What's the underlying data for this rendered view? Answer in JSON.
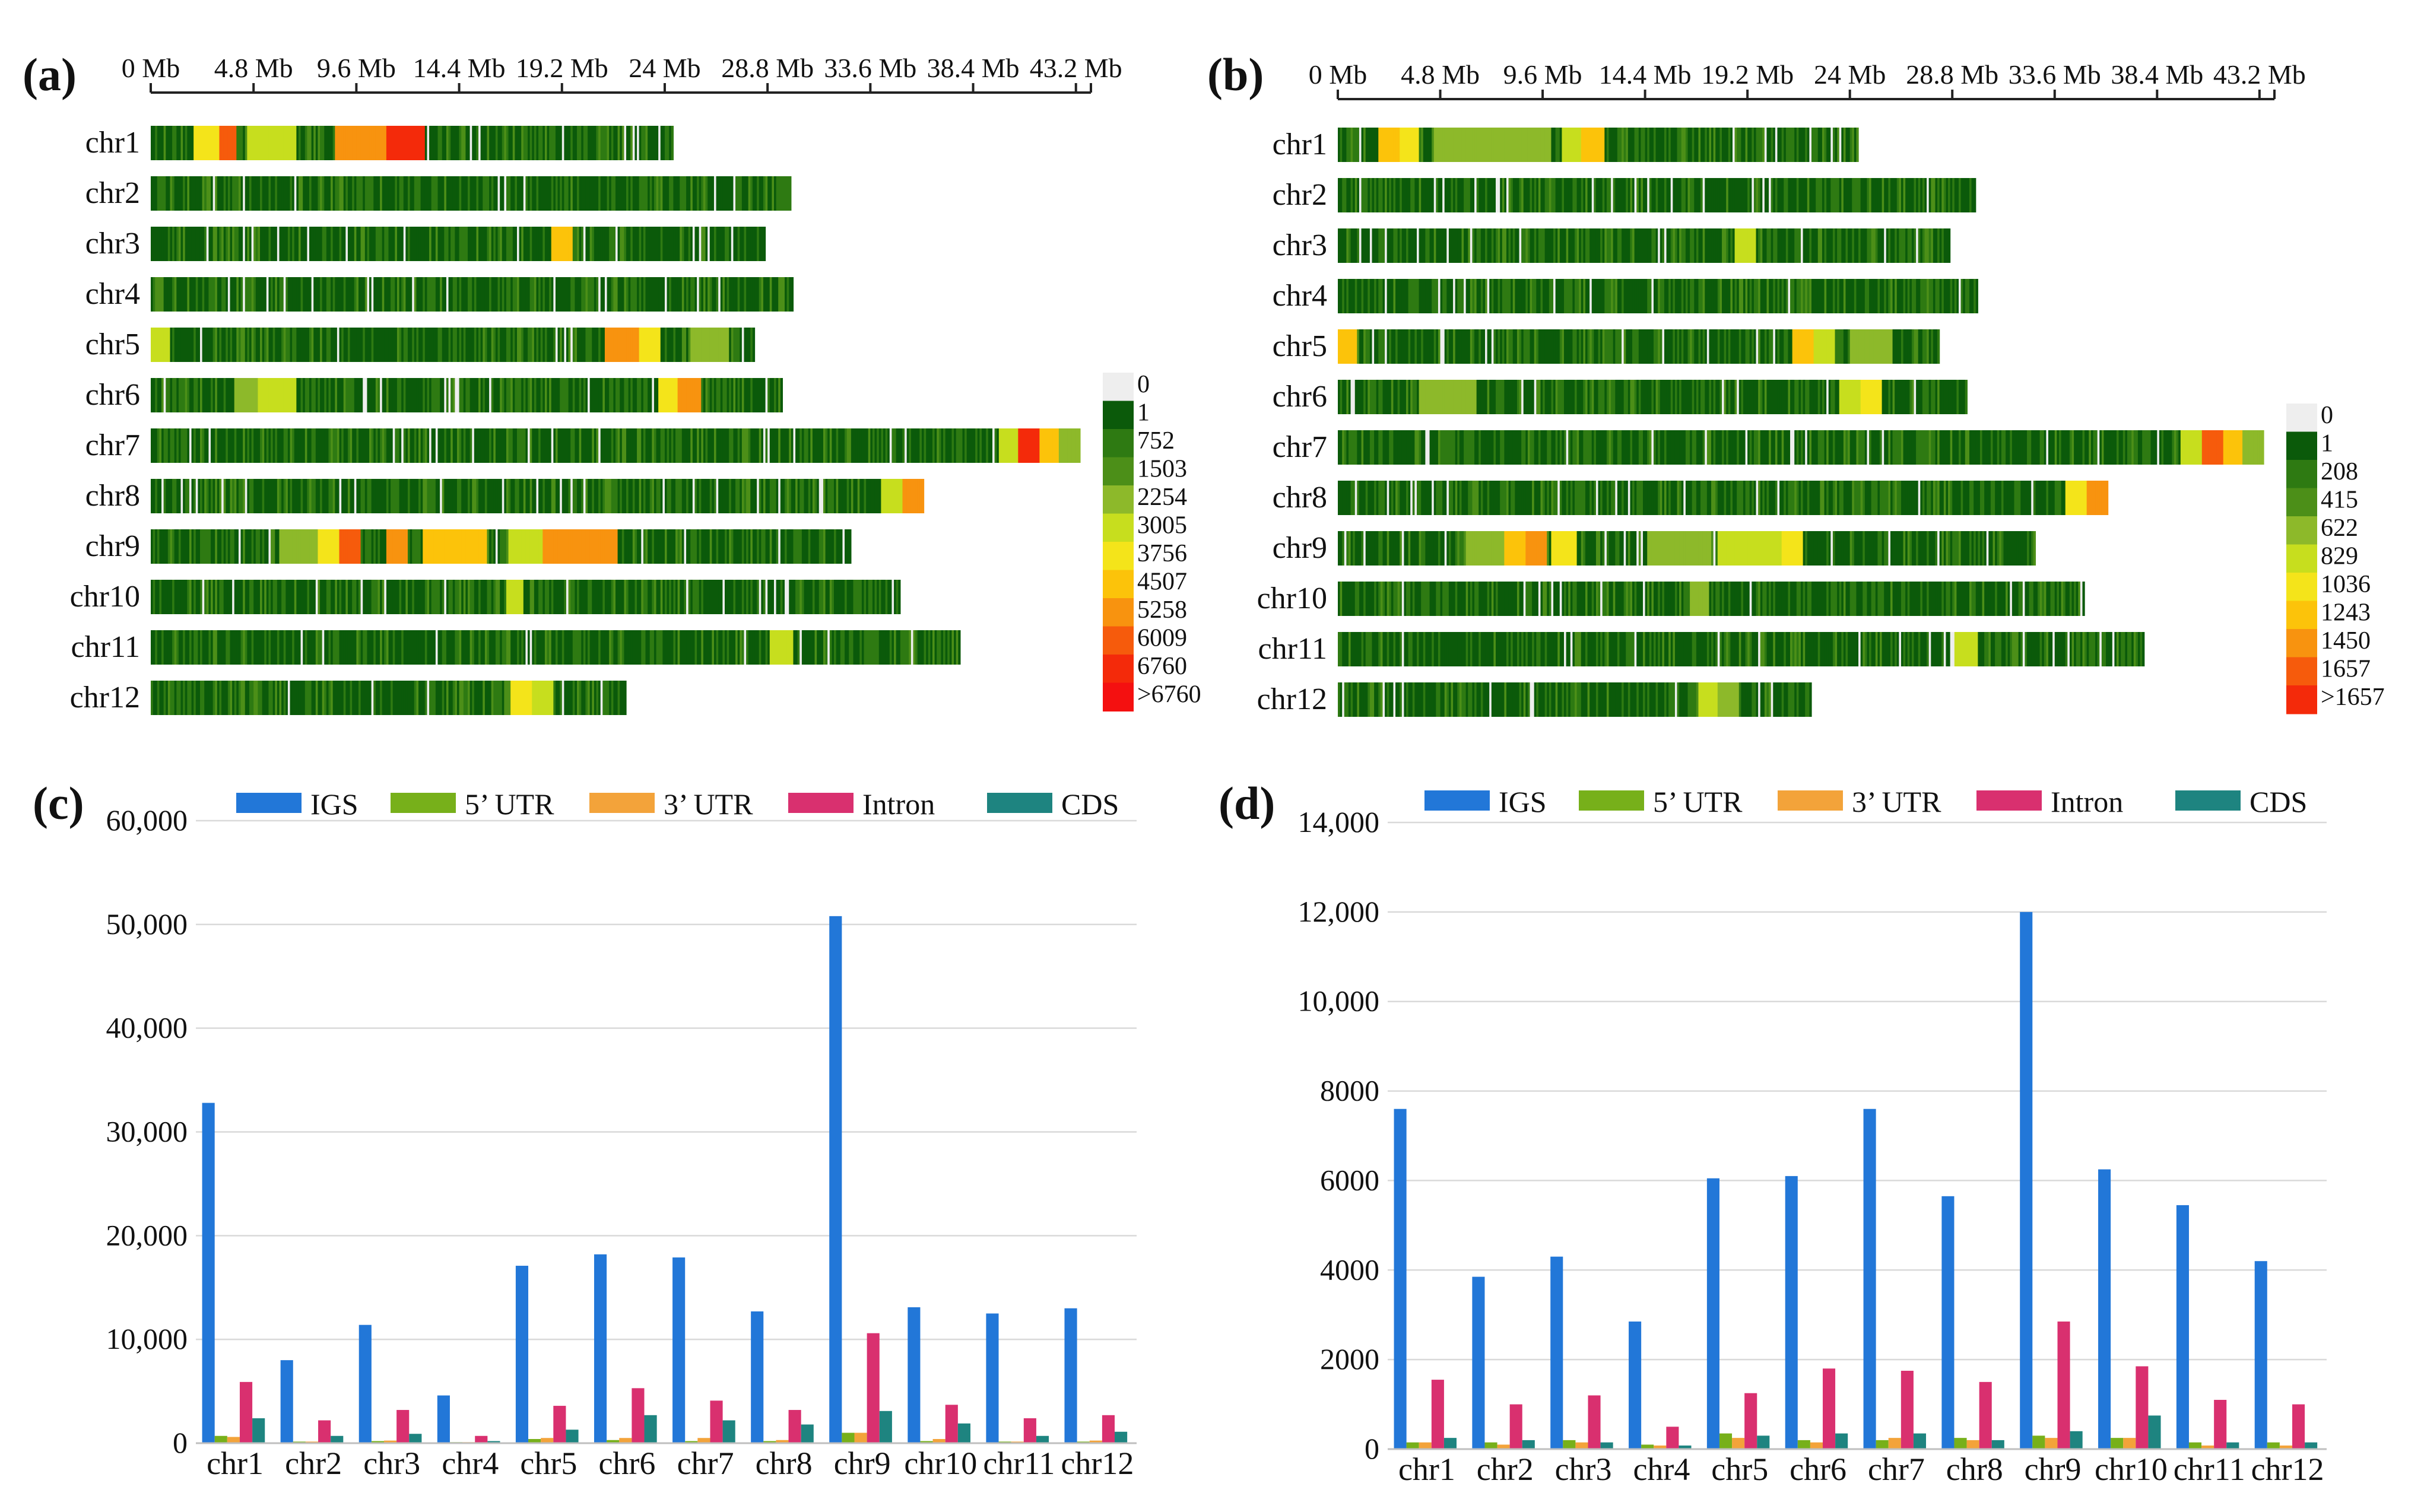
{
  "panels": [
    {
      "id": "a",
      "label": "(a)",
      "type": "heatmap",
      "axis_ticks": [
        "0 Mb",
        "4.8 Mb",
        "9.6 Mb",
        "14.4 Mb",
        "19.2 Mb",
        "24 Mb",
        "28.8 Mb",
        "33.6 Mb",
        "38.4 Mb",
        "43.2 Mb"
      ],
      "axis_tick_values_mb": [
        0,
        4.8,
        9.6,
        14.4,
        19.2,
        24,
        28.8,
        33.6,
        38.4,
        43.2
      ],
      "chromosomes": [
        "chr1",
        "chr2",
        "chr3",
        "chr4",
        "chr5",
        "chr6",
        "chr7",
        "chr8",
        "chr9",
        "chr10",
        "chr11",
        "chr12"
      ],
      "chromosome_lengths_mb": [
        24.4,
        29.9,
        28.7,
        30.0,
        28.2,
        29.5,
        43.4,
        36.1,
        32.7,
        35.0,
        37.8,
        22.2
      ],
      "legend_labels": [
        "0",
        "1",
        "752",
        "1503",
        "2254",
        "3005",
        "3756",
        "4507",
        "5258",
        "6009",
        "6760",
        ">6760"
      ],
      "hotspots": [
        {
          "chr": "chr1",
          "ranges_mb": [
            [
              2.0,
              3.2,
              6
            ],
            [
              3.2,
              4.0,
              9
            ],
            [
              4.5,
              6.8,
              5
            ],
            [
              8.6,
              11.0,
              8
            ],
            [
              11.0,
              12.8,
              10
            ]
          ]
        },
        {
          "chr": "chr3",
          "ranges_mb": [
            [
              18.7,
              19.7,
              7
            ]
          ]
        },
        {
          "chr": "chr5",
          "ranges_mb": [
            [
              0,
              0.9,
              5
            ],
            [
              21.2,
              22.8,
              8
            ],
            [
              22.8,
              23.8,
              6
            ],
            [
              25.2,
              27.0,
              4
            ]
          ]
        },
        {
          "chr": "chr6",
          "ranges_mb": [
            [
              3.9,
              5.0,
              4
            ],
            [
              5.0,
              6.8,
              5
            ],
            [
              23.7,
              24.6,
              6
            ],
            [
              24.6,
              25.7,
              8
            ]
          ]
        },
        {
          "chr": "chr7",
          "ranges_mb": [
            [
              39.6,
              40.5,
              5
            ],
            [
              40.5,
              41.5,
              10
            ],
            [
              41.5,
              42.4,
              7
            ],
            [
              42.4,
              43.4,
              4
            ]
          ]
        },
        {
          "chr": "chr8",
          "ranges_mb": [
            [
              34.1,
              35.1,
              5
            ],
            [
              35.1,
              36.1,
              8
            ]
          ]
        },
        {
          "chr": "chr9",
          "ranges_mb": [
            [
              6.0,
              7.8,
              4
            ],
            [
              7.8,
              8.8,
              6
            ],
            [
              8.8,
              9.8,
              9
            ],
            [
              11.0,
              12.0,
              8
            ],
            [
              12.7,
              15.7,
              7
            ],
            [
              16.7,
              18.3,
              5
            ],
            [
              18.3,
              21.8,
              8
            ]
          ]
        },
        {
          "chr": "chr10",
          "ranges_mb": [
            [
              16.6,
              17.4,
              5
            ]
          ]
        },
        {
          "chr": "chr11",
          "ranges_mb": [
            [
              28.9,
              30.0,
              5
            ]
          ]
        },
        {
          "chr": "chr12",
          "ranges_mb": [
            [
              16.8,
              17.8,
              6
            ],
            [
              17.8,
              18.8,
              5
            ]
          ]
        }
      ]
    },
    {
      "id": "b",
      "label": "(b)",
      "type": "heatmap",
      "axis_ticks": [
        "0 Mb",
        "4.8 Mb",
        "9.6 Mb",
        "14.4 Mb",
        "19.2 Mb",
        "24 Mb",
        "28.8 Mb",
        "33.6 Mb",
        "38.4 Mb",
        "43.2 Mb"
      ],
      "axis_tick_values_mb": [
        0,
        4.8,
        9.6,
        14.4,
        19.2,
        24,
        28.8,
        33.6,
        38.4,
        43.2
      ],
      "chromosomes": [
        "chr1",
        "chr2",
        "chr3",
        "chr4",
        "chr5",
        "chr6",
        "chr7",
        "chr8",
        "chr9",
        "chr10",
        "chr11",
        "chr12"
      ],
      "chromosome_lengths_mb": [
        24.4,
        29.9,
        28.7,
        30.0,
        28.2,
        29.5,
        43.4,
        36.1,
        32.7,
        35.0,
        37.8,
        22.2
      ],
      "legend_labels": [
        "0",
        "1",
        "208",
        "415",
        "622",
        "829",
        "1036",
        "1243",
        "1450",
        "1657",
        ">1657"
      ],
      "hotspots": [
        {
          "chr": "chr1",
          "ranges_mb": [
            [
              1.9,
              2.9,
              7
            ],
            [
              2.9,
              3.8,
              6
            ],
            [
              4.5,
              10.0,
              4
            ],
            [
              10.5,
              11.4,
              5
            ],
            [
              11.4,
              12.5,
              7
            ]
          ]
        },
        {
          "chr": "chr3",
          "ranges_mb": [
            [
              18.6,
              19.6,
              5
            ]
          ]
        },
        {
          "chr": "chr5",
          "ranges_mb": [
            [
              0,
              0.9,
              7
            ],
            [
              21.3,
              22.3,
              7
            ],
            [
              22.3,
              23.3,
              5
            ],
            [
              24.0,
              26.0,
              4
            ]
          ]
        },
        {
          "chr": "chr6",
          "ranges_mb": [
            [
              3.8,
              6.5,
              4
            ],
            [
              23.5,
              24.5,
              5
            ],
            [
              24.5,
              25.5,
              6
            ]
          ]
        },
        {
          "chr": "chr7",
          "ranges_mb": [
            [
              39.5,
              40.5,
              5
            ],
            [
              40.5,
              41.5,
              9
            ],
            [
              41.5,
              42.4,
              7
            ],
            [
              42.4,
              43.4,
              4
            ]
          ]
        },
        {
          "chr": "chr8",
          "ranges_mb": [
            [
              34.1,
              35.1,
              6
            ],
            [
              35.1,
              36.1,
              8
            ]
          ]
        },
        {
          "chr": "chr9",
          "ranges_mb": [
            [
              6.0,
              7.8,
              4
            ],
            [
              7.8,
              8.8,
              7
            ],
            [
              8.8,
              9.8,
              8
            ],
            [
              10.0,
              11.2,
              6
            ],
            [
              14.5,
              17.5,
              4
            ],
            [
              17.8,
              20.8,
              5
            ],
            [
              20.8,
              21.8,
              6
            ]
          ]
        },
        {
          "chr": "chr10",
          "ranges_mb": [
            [
              16.5,
              17.4,
              4
            ]
          ]
        },
        {
          "chr": "chr11",
          "ranges_mb": [
            [
              28.9,
              30.0,
              5
            ]
          ]
        },
        {
          "chr": "chr12",
          "ranges_mb": [
            [
              16.9,
              17.8,
              5
            ],
            [
              17.8,
              18.8,
              4
            ]
          ]
        }
      ]
    }
  ],
  "heat_colors": [
    "#eeeeee",
    "#0b5a0a",
    "#2e7a12",
    "#4c8f18",
    "#8db92a",
    "#c7de1e",
    "#f4e41a",
    "#fcc30a",
    "#f8930f",
    "#f65b0c",
    "#f42a0a",
    "#f41010"
  ],
  "chart_data": [
    {
      "id": "c",
      "label": "(c)",
      "type": "bar",
      "categories": [
        "chr1",
        "chr2",
        "chr3",
        "chr4",
        "chr5",
        "chr6",
        "chr7",
        "chr8",
        "chr9",
        "chr10",
        "chr11",
        "chr12"
      ],
      "ylim": [
        0,
        60000
      ],
      "yticks": [
        0,
        10000,
        20000,
        30000,
        40000,
        50000,
        60000
      ],
      "ytick_labels": [
        "0",
        "10,000",
        "20,000",
        "30,000",
        "40,000",
        "50,000",
        "60,000"
      ],
      "series": [
        {
          "name": "IGS",
          "color": "#2277d8",
          "values": [
            32800,
            8000,
            11400,
            4600,
            17100,
            18200,
            17900,
            12700,
            50800,
            13100,
            12500,
            13000
          ]
        },
        {
          "name": "5’ UTR",
          "color": "#77b01a",
          "values": [
            700,
            150,
            200,
            100,
            400,
            300,
            200,
            200,
            1000,
            200,
            150,
            150
          ]
        },
        {
          "name": "3’ UTR",
          "color": "#f3a33a",
          "values": [
            600,
            150,
            250,
            100,
            500,
            500,
            500,
            300,
            1000,
            400,
            150,
            250
          ]
        },
        {
          "name": "Intron",
          "color": "#d9306f",
          "values": [
            5900,
            2200,
            3200,
            700,
            3600,
            5300,
            4100,
            3200,
            10600,
            3700,
            2400,
            2700
          ]
        },
        {
          "name": "CDS",
          "color": "#1e8480",
          "values": [
            2400,
            700,
            900,
            200,
            1300,
            2700,
            2200,
            1800,
            3100,
            1900,
            700,
            1100
          ]
        }
      ]
    },
    {
      "id": "d",
      "label": "(d)",
      "type": "bar",
      "categories": [
        "chr1",
        "chr2",
        "chr3",
        "chr4",
        "chr5",
        "chr6",
        "chr7",
        "chr8",
        "chr9",
        "chr10",
        "chr11",
        "chr12"
      ],
      "ylim": [
        0,
        14000
      ],
      "yticks": [
        0,
        2000,
        4000,
        6000,
        8000,
        10000,
        12000,
        14000
      ],
      "ytick_labels": [
        "0",
        "2000",
        "4000",
        "6000",
        "8000",
        "10,000",
        "12,000",
        "14,000"
      ],
      "series": [
        {
          "name": "IGS",
          "color": "#2277d8",
          "values": [
            7600,
            3850,
            4300,
            2850,
            6050,
            6100,
            7600,
            5650,
            12000,
            6250,
            5450,
            4200
          ]
        },
        {
          "name": "5’ UTR",
          "color": "#77b01a",
          "values": [
            150,
            150,
            200,
            100,
            350,
            200,
            200,
            250,
            300,
            250,
            150,
            150
          ]
        },
        {
          "name": "3’ UTR",
          "color": "#f3a33a",
          "values": [
            150,
            100,
            150,
            80,
            250,
            150,
            250,
            200,
            250,
            250,
            80,
            80
          ]
        },
        {
          "name": "Intron",
          "color": "#d9306f",
          "values": [
            1550,
            1000,
            1200,
            500,
            1250,
            1800,
            1750,
            1500,
            2850,
            1850,
            1100,
            1000
          ]
        },
        {
          "name": "CDS",
          "color": "#1e8480",
          "values": [
            250,
            200,
            150,
            80,
            300,
            350,
            350,
            200,
            400,
            750,
            150,
            150
          ]
        }
      ]
    }
  ]
}
